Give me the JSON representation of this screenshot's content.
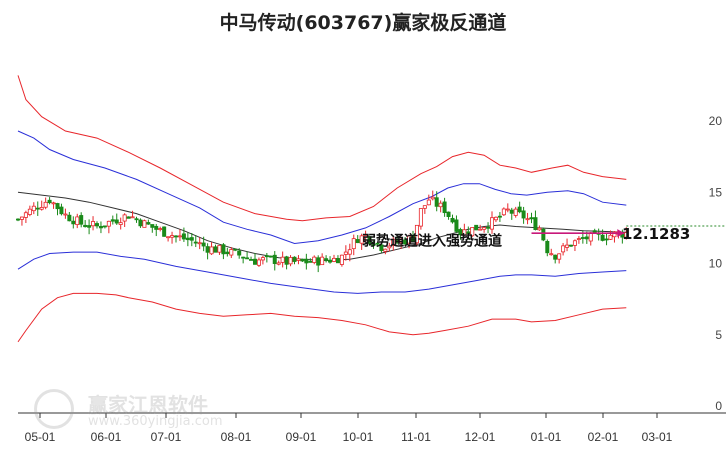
{
  "chart_data": {
    "type": "candlestick-channel",
    "title": "中马传动(603767)赢家极反通道",
    "x_tick_labels": [
      "05-01",
      "06-01",
      "07-01",
      "08-01",
      "09-01",
      "10-01",
      "11-01",
      "12-01",
      "01-01",
      "02-01",
      "03-01"
    ],
    "y_tick_labels": [
      "0",
      "5",
      "10",
      "15",
      "20"
    ],
    "ylim": [
      0,
      22
    ],
    "annotation": "弱势通道进入强势通道",
    "last_price_label": "12.1283",
    "last_price": 12.13,
    "colors": {
      "outer_band": "#e8262b",
      "inner_band": "#2a2fd8",
      "mid_line": "#333333",
      "up": "#e8262b",
      "down": "#1a8a1a",
      "arrow": "#c8187a",
      "dotted": "#2a8a2a"
    },
    "outer_upper": [
      [
        0,
        23.2
      ],
      [
        5,
        21.5
      ],
      [
        15,
        20.3
      ],
      [
        30,
        19.3
      ],
      [
        50,
        18.8
      ],
      [
        70,
        17.8
      ],
      [
        90,
        16.7
      ],
      [
        110,
        15.5
      ],
      [
        130,
        14.3
      ],
      [
        150,
        13.5
      ],
      [
        170,
        13.1
      ],
      [
        180,
        13.0
      ],
      [
        195,
        13.2
      ],
      [
        210,
        13.3
      ],
      [
        225,
        14.0
      ],
      [
        240,
        15.3
      ],
      [
        255,
        16.3
      ],
      [
        265,
        16.8
      ],
      [
        275,
        17.5
      ],
      [
        285,
        17.8
      ],
      [
        295,
        17.6
      ],
      [
        305,
        16.9
      ],
      [
        315,
        16.7
      ],
      [
        325,
        16.4
      ],
      [
        338,
        16.7
      ],
      [
        348,
        16.9
      ],
      [
        358,
        16.4
      ],
      [
        370,
        16.1
      ],
      [
        385,
        15.9
      ]
    ],
    "inner_upper": [
      [
        0,
        19.3
      ],
      [
        10,
        18.8
      ],
      [
        20,
        18.0
      ],
      [
        35,
        17.3
      ],
      [
        55,
        16.7
      ],
      [
        75,
        15.9
      ],
      [
        95,
        14.9
      ],
      [
        115,
        13.9
      ],
      [
        130,
        12.9
      ],
      [
        145,
        12.4
      ],
      [
        160,
        12.0
      ],
      [
        175,
        11.4
      ],
      [
        190,
        11.6
      ],
      [
        205,
        12.0
      ],
      [
        220,
        12.5
      ],
      [
        235,
        13.3
      ],
      [
        250,
        14.2
      ],
      [
        262,
        14.7
      ],
      [
        272,
        15.3
      ],
      [
        282,
        15.6
      ],
      [
        292,
        15.6
      ],
      [
        302,
        15.2
      ],
      [
        312,
        14.9
      ],
      [
        322,
        14.8
      ],
      [
        335,
        15.0
      ],
      [
        348,
        15.1
      ],
      [
        358,
        14.9
      ],
      [
        370,
        14.3
      ],
      [
        385,
        14.1
      ]
    ],
    "mid_line": [
      [
        0,
        15.0
      ],
      [
        15,
        14.8
      ],
      [
        30,
        14.6
      ],
      [
        45,
        14.3
      ],
      [
        60,
        13.9
      ],
      [
        75,
        13.5
      ],
      [
        90,
        12.9
      ],
      [
        105,
        12.3
      ],
      [
        120,
        11.6
      ],
      [
        135,
        11.1
      ],
      [
        150,
        10.7
      ],
      [
        165,
        10.4
      ],
      [
        180,
        10.3
      ],
      [
        195,
        10.2
      ],
      [
        210,
        10.3
      ],
      [
        225,
        10.6
      ],
      [
        240,
        11.0
      ],
      [
        255,
        11.4
      ],
      [
        265,
        11.8
      ],
      [
        275,
        12.1
      ],
      [
        285,
        12.4
      ],
      [
        295,
        12.6
      ],
      [
        305,
        12.7
      ],
      [
        315,
        12.6
      ],
      [
        330,
        12.5
      ],
      [
        345,
        12.4
      ],
      [
        358,
        12.3
      ],
      [
        370,
        12.25
      ],
      [
        385,
        12.2
      ]
    ],
    "inner_lower": [
      [
        0,
        9.6
      ],
      [
        10,
        10.3
      ],
      [
        20,
        10.7
      ],
      [
        35,
        10.8
      ],
      [
        50,
        10.8
      ],
      [
        65,
        10.5
      ],
      [
        80,
        10.3
      ],
      [
        100,
        9.8
      ],
      [
        120,
        9.4
      ],
      [
        140,
        9.0
      ],
      [
        160,
        8.6
      ],
      [
        180,
        8.3
      ],
      [
        200,
        8.0
      ],
      [
        215,
        7.9
      ],
      [
        230,
        8.0
      ],
      [
        245,
        8.0
      ],
      [
        260,
        8.2
      ],
      [
        275,
        8.5
      ],
      [
        290,
        8.8
      ],
      [
        305,
        9.1
      ],
      [
        315,
        9.2
      ],
      [
        325,
        9.2
      ],
      [
        340,
        9.1
      ],
      [
        355,
        9.3
      ],
      [
        370,
        9.4
      ],
      [
        385,
        9.5
      ]
    ],
    "outer_lower": [
      [
        0,
        4.5
      ],
      [
        5,
        5.3
      ],
      [
        15,
        6.8
      ],
      [
        25,
        7.6
      ],
      [
        35,
        7.9
      ],
      [
        50,
        7.9
      ],
      [
        62,
        7.8
      ],
      [
        70,
        7.6
      ],
      [
        85,
        7.3
      ],
      [
        100,
        6.8
      ],
      [
        115,
        6.5
      ],
      [
        130,
        6.3
      ],
      [
        145,
        6.4
      ],
      [
        160,
        6.5
      ],
      [
        175,
        6.3
      ],
      [
        190,
        6.2
      ],
      [
        205,
        6.0
      ],
      [
        220,
        5.7
      ],
      [
        235,
        5.2
      ],
      [
        250,
        5.0
      ],
      [
        260,
        5.1
      ],
      [
        270,
        5.3
      ],
      [
        285,
        5.6
      ],
      [
        300,
        6.1
      ],
      [
        315,
        6.1
      ],
      [
        325,
        5.9
      ],
      [
        340,
        6.0
      ],
      [
        355,
        6.4
      ],
      [
        370,
        6.8
      ],
      [
        385,
        6.9
      ]
    ],
    "prices": [
      [
        0,
        13.1
      ],
      [
        10,
        13.9
      ],
      [
        20,
        14.5
      ],
      [
        30,
        13.4
      ],
      [
        40,
        12.8
      ],
      [
        50,
        12.6
      ],
      [
        60,
        13.0
      ],
      [
        70,
        13.4
      ],
      [
        80,
        12.8
      ],
      [
        90,
        12.3
      ],
      [
        100,
        11.9
      ],
      [
        110,
        11.6
      ],
      [
        120,
        11.1
      ],
      [
        130,
        10.9
      ],
      [
        140,
        10.6
      ],
      [
        150,
        10.2
      ],
      [
        160,
        10.3
      ],
      [
        170,
        10.1
      ],
      [
        180,
        10.1
      ],
      [
        190,
        10.2
      ],
      [
        200,
        10.3
      ],
      [
        205,
        10.5
      ],
      [
        210,
        11.2
      ],
      [
        215,
        11.8
      ],
      [
        220,
        11.9
      ],
      [
        225,
        11.6
      ],
      [
        230,
        11.2
      ],
      [
        240,
        11.5
      ],
      [
        250,
        11.8
      ],
      [
        255,
        13.7
      ],
      [
        260,
        14.5
      ],
      [
        270,
        13.8
      ],
      [
        280,
        12.2
      ],
      [
        290,
        12.5
      ],
      [
        300,
        12.9
      ],
      [
        310,
        13.7
      ],
      [
        320,
        13.3
      ],
      [
        330,
        12.5
      ],
      [
        335,
        11.0
      ],
      [
        340,
        10.6
      ],
      [
        350,
        11.4
      ],
      [
        360,
        11.8
      ],
      [
        370,
        11.9
      ],
      [
        380,
        12.1
      ],
      [
        385,
        12.13
      ]
    ]
  }
}
